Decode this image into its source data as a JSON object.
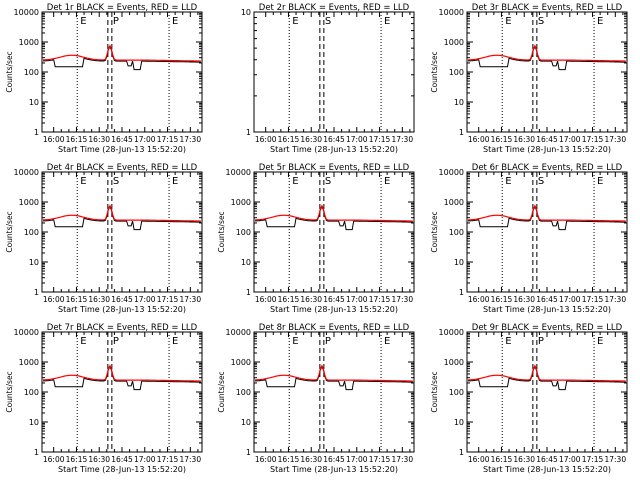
{
  "chart_data": [
    {
      "type": "line",
      "title": "Det 1r BLACK = Events, RED = LLD",
      "ylabel": "Counts/sec",
      "xlabel": "Start Time (28-Jun-13 15:52:20)",
      "ylog": true,
      "ylim": [
        1,
        10000
      ],
      "yticks": [
        "1",
        "10",
        "100",
        "1000",
        "10000"
      ],
      "xticks": [
        "16:00",
        "16:15",
        "16:30",
        "16:45",
        "17:00",
        "17:15",
        "17:30"
      ],
      "markers": [
        {
          "label": "E",
          "style": "dotted"
        },
        {
          "label": "P",
          "style": "dashed"
        },
        {
          "label": "E",
          "style": "dotted"
        }
      ],
      "has_data": true,
      "series": [
        {
          "name": "BLACK = Events",
          "color": "#000000"
        },
        {
          "name": "RED = LLD",
          "color": "#ff0000"
        }
      ]
    },
    {
      "type": "line",
      "title": "Det 2r BLACK = Events, RED = LLD",
      "ylabel": "",
      "xlabel": "Start Time (28-Jun-13 15:52:20)",
      "ylog": true,
      "ylim": [
        1,
        10
      ],
      "yticks": [
        "1",
        "10"
      ],
      "xticks": [
        "16:00",
        "16:15",
        "16:30",
        "16:45",
        "17:00",
        "17:15",
        "17:30"
      ],
      "markers": [
        {
          "label": "E",
          "style": "dotted"
        },
        {
          "label": "S",
          "style": "dashed"
        },
        {
          "label": "E",
          "style": "dotted"
        }
      ],
      "has_data": false,
      "series": []
    },
    {
      "type": "line",
      "title": "Det 3r BLACK = Events, RED = LLD",
      "ylabel": "Counts/sec",
      "xlabel": "Start Time (28-Jun-13 15:52:20)",
      "ylog": true,
      "ylim": [
        1,
        10000
      ],
      "yticks": [
        "1",
        "10",
        "100",
        "1000",
        "10000"
      ],
      "xticks": [
        "16:00",
        "16:15",
        "16:30",
        "16:45",
        "17:00",
        "17:15",
        "17:30"
      ],
      "markers": [
        {
          "label": "E",
          "style": "dotted"
        },
        {
          "label": "S",
          "style": "dashed"
        },
        {
          "label": "E",
          "style": "dotted"
        }
      ],
      "has_data": true,
      "series": [
        {
          "name": "BLACK = Events",
          "color": "#000000"
        },
        {
          "name": "RED = LLD",
          "color": "#ff0000"
        }
      ]
    },
    {
      "type": "line",
      "title": "Det 4r BLACK = Events, RED = LLD",
      "ylabel": "Counts/sec",
      "xlabel": "Start Time (28-Jun-13 15:52:20)",
      "ylog": true,
      "ylim": [
        1,
        10000
      ],
      "yticks": [
        "1",
        "10",
        "100",
        "1000",
        "10000"
      ],
      "xticks": [
        "16:00",
        "16:15",
        "16:30",
        "16:45",
        "17:00",
        "17:15",
        "17:30"
      ],
      "markers": [
        {
          "label": "E",
          "style": "dotted"
        },
        {
          "label": "S",
          "style": "dashed"
        },
        {
          "label": "E",
          "style": "dotted"
        }
      ],
      "has_data": true,
      "series": [
        {
          "name": "BLACK = Events",
          "color": "#000000"
        },
        {
          "name": "RED = LLD",
          "color": "#ff0000"
        }
      ]
    },
    {
      "type": "line",
      "title": "Det 5r BLACK = Events, RED = LLD",
      "ylabel": "Counts/sec",
      "xlabel": "Start Time (28-Jun-13 15:52:20)",
      "ylog": true,
      "ylim": [
        1,
        10000
      ],
      "yticks": [
        "1",
        "10",
        "100",
        "1000",
        "10000"
      ],
      "xticks": [
        "16:00",
        "16:15",
        "16:30",
        "16:45",
        "17:00",
        "17:15",
        "17:30"
      ],
      "markers": [
        {
          "label": "E",
          "style": "dotted"
        },
        {
          "label": "S",
          "style": "dashed"
        },
        {
          "label": "E",
          "style": "dotted"
        }
      ],
      "has_data": true,
      "series": [
        {
          "name": "BLACK = Events",
          "color": "#000000"
        },
        {
          "name": "RED = LLD",
          "color": "#ff0000"
        }
      ]
    },
    {
      "type": "line",
      "title": "Det 6r BLACK = Events, RED = LLD",
      "ylabel": "Counts/sec",
      "xlabel": "Start Time (28-Jun-13 15:52:20)",
      "ylog": true,
      "ylim": [
        1,
        10000
      ],
      "yticks": [
        "1",
        "10",
        "100",
        "1000",
        "10000"
      ],
      "xticks": [
        "16:00",
        "16:15",
        "16:30",
        "16:45",
        "17:00",
        "17:15",
        "17:30"
      ],
      "markers": [
        {
          "label": "E",
          "style": "dotted"
        },
        {
          "label": "S",
          "style": "dashed"
        },
        {
          "label": "E",
          "style": "dotted"
        }
      ],
      "has_data": true,
      "series": [
        {
          "name": "BLACK = Events",
          "color": "#000000"
        },
        {
          "name": "RED = LLD",
          "color": "#ff0000"
        }
      ]
    },
    {
      "type": "line",
      "title": "Det 7r BLACK = Events, RED = LLD",
      "ylabel": "Counts/sec",
      "xlabel": "Start Time (28-Jun-13 15:52:20)",
      "ylog": true,
      "ylim": [
        1,
        10000
      ],
      "yticks": [
        "1",
        "10",
        "100",
        "1000",
        "10000"
      ],
      "xticks": [
        "16:00",
        "16:15",
        "16:30",
        "16:45",
        "17:00",
        "17:15",
        "17:30"
      ],
      "markers": [
        {
          "label": "E",
          "style": "dotted"
        },
        {
          "label": "P",
          "style": "dashed"
        },
        {
          "label": "E",
          "style": "dotted"
        }
      ],
      "has_data": true,
      "series": [
        {
          "name": "BLACK = Events",
          "color": "#000000"
        },
        {
          "name": "RED = LLD",
          "color": "#ff0000"
        }
      ]
    },
    {
      "type": "line",
      "title": "Det 8r BLACK = Events, RED = LLD",
      "ylabel": "Counts/sec",
      "xlabel": "Start Time (28-Jun-13 15:52:20)",
      "ylog": true,
      "ylim": [
        1,
        10000
      ],
      "yticks": [
        "1",
        "10",
        "100",
        "1000",
        "10000"
      ],
      "xticks": [
        "16:00",
        "16:15",
        "16:30",
        "16:45",
        "17:00",
        "17:15",
        "17:30"
      ],
      "markers": [
        {
          "label": "E",
          "style": "dotted"
        },
        {
          "label": "P",
          "style": "dashed"
        },
        {
          "label": "E",
          "style": "dotted"
        }
      ],
      "has_data": true,
      "series": [
        {
          "name": "BLACK = Events",
          "color": "#000000"
        },
        {
          "name": "RED = LLD",
          "color": "#ff0000"
        }
      ]
    },
    {
      "type": "line",
      "title": "Det 9r BLACK = Events, RED = LLD",
      "ylabel": "Counts/sec",
      "xlabel": "Start Time (28-Jun-13 15:52:20)",
      "ylog": true,
      "ylim": [
        1,
        10000
      ],
      "yticks": [
        "1",
        "10",
        "100",
        "1000",
        "10000"
      ],
      "xticks": [
        "16:00",
        "16:15",
        "16:30",
        "16:45",
        "17:00",
        "17:15",
        "17:30"
      ],
      "markers": [
        {
          "label": "E",
          "style": "dotted"
        },
        {
          "label": "P",
          "style": "dashed"
        },
        {
          "label": "E",
          "style": "dotted"
        }
      ],
      "has_data": true,
      "series": [
        {
          "name": "BLACK = Events",
          "color": "#000000"
        },
        {
          "name": "RED = LLD",
          "color": "#ff0000"
        }
      ]
    }
  ]
}
